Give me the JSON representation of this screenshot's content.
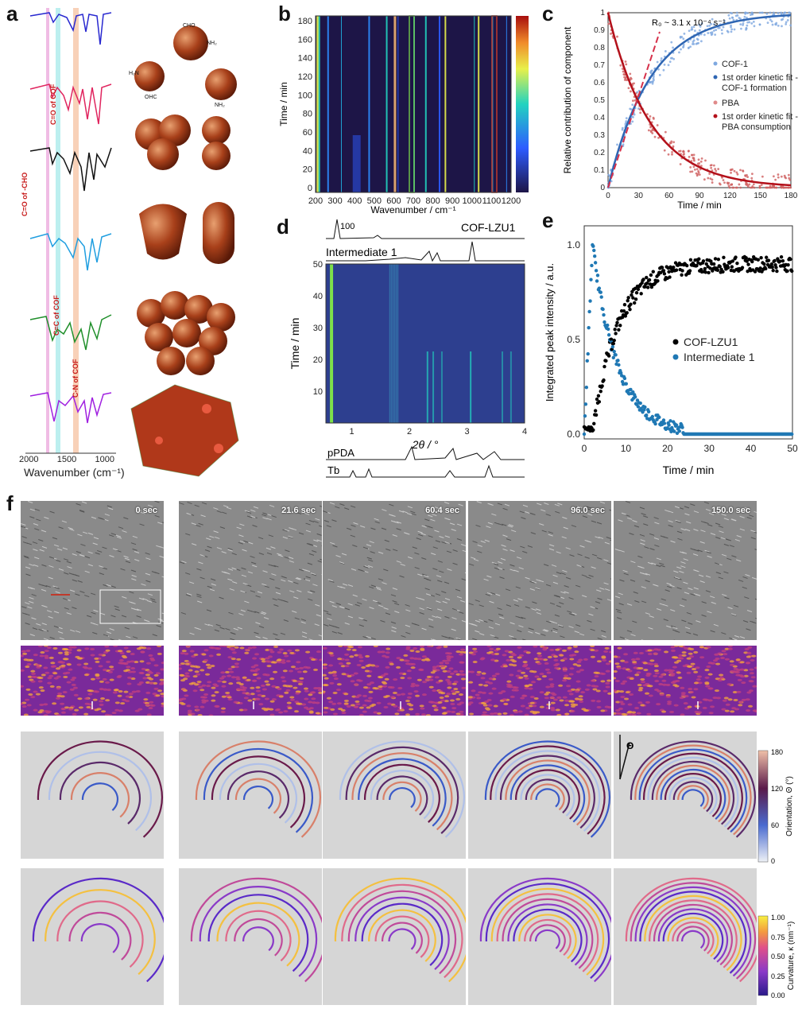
{
  "panels": {
    "a": {
      "label": "a",
      "xlabel": "Wavenumber (cm⁻¹)",
      "ticks": [
        "2000",
        "1500",
        "1000"
      ],
      "annotations": [
        "C=O of COF",
        "C=O of -CHO",
        "C=C of COF",
        "C-N of COF"
      ],
      "chem_labels": [
        "CHO",
        "NH₂",
        "H₂N",
        "OHC",
        "NH₂"
      ]
    },
    "b": {
      "label": "b",
      "ylabel": "Time / min",
      "xlabel": "Wavenumber / cm⁻¹",
      "xticks": [
        "200",
        "300",
        "400",
        "500",
        "600",
        "700",
        "800",
        "900",
        "1000",
        "1100",
        "1200"
      ],
      "yticks": [
        "0",
        "20",
        "40",
        "60",
        "80",
        "100",
        "120",
        "140",
        "160",
        "180"
      ]
    },
    "c": {
      "label": "c",
      "ylabel": "Relative contribution of component",
      "xlabel": "Time / min",
      "annotation": "R₀ ~ 3.1 x 10⁻⁴ s⁻¹",
      "legend": [
        "COF-1",
        "1st order kinetic fit -",
        "COF-1 formation",
        "PBA",
        "1st order kinetic fit -",
        "PBA consumption"
      ],
      "xticks": [
        "0",
        "30",
        "60",
        "90",
        "120",
        "150",
        "180"
      ],
      "yticks": [
        "0",
        "0.1",
        "0.2",
        "0.3",
        "0.4",
        "0.5",
        "0.6",
        "0.7",
        "0.8",
        "0.9",
        "1"
      ]
    },
    "d": {
      "label": "d",
      "top_label": "COF-LZU1",
      "peak_label": "100",
      "intermediate_label": "Intermediate 1",
      "ylabel": "Time / min",
      "xlabel": "2θ / °",
      "xticks": [
        "1",
        "2",
        "3",
        "4"
      ],
      "yticks": [
        "10",
        "20",
        "30",
        "40",
        "50"
      ],
      "bottom_labels": [
        "pPDA",
        "Tb"
      ]
    },
    "e": {
      "label": "e",
      "ylabel": "Integrated peak intensity / a.u.",
      "xlabel": "Time / min",
      "legend": [
        "COF-LZU1",
        "Intermediate 1"
      ],
      "xticks": [
        "0",
        "10",
        "20",
        "30",
        "40",
        "50"
      ],
      "yticks": [
        "0.0",
        "0.5",
        "1.0"
      ]
    },
    "f": {
      "label": "f",
      "timestamps": [
        "0 sec",
        "21.6 sec",
        "60.4 sec",
        "96.0 sec",
        "150.0 sec"
      ],
      "orientation_label": "Orientation, Θ (°)",
      "orientation_ticks": [
        "180",
        "120",
        "60",
        "0"
      ],
      "theta_symbol": "Θ",
      "curvature_label": "Curvature, κ (nm⁻¹)",
      "curvature_ticks": [
        "1.00",
        "0.75",
        "0.50",
        "0.25",
        "0.00"
      ]
    }
  },
  "colors": {
    "cof_blue": "#2f66b3",
    "pba_red": "#b3101a",
    "cof_lzu1": "#000000",
    "intermediate": "#1f78b4",
    "heat_bg": "#1d1547"
  },
  "chart_data": [
    {
      "type": "line",
      "panel": "c",
      "xlabel": "Time / min",
      "ylabel": "Relative contribution of component",
      "xlim": [
        0,
        180
      ],
      "ylim": [
        0,
        1
      ],
      "series": [
        {
          "name": "COF-1",
          "x": [
            0,
            15,
            30,
            45,
            60,
            90,
            120,
            150,
            180
          ],
          "values": [
            0,
            0.27,
            0.46,
            0.6,
            0.71,
            0.84,
            0.92,
            0.96,
            0.98
          ]
        },
        {
          "name": "PBA",
          "x": [
            0,
            15,
            30,
            45,
            60,
            90,
            120,
            150,
            180
          ],
          "values": [
            1,
            0.73,
            0.54,
            0.4,
            0.29,
            0.16,
            0.08,
            0.04,
            0.02
          ]
        }
      ]
    },
    {
      "type": "scatter",
      "panel": "e",
      "xlabel": "Time / min",
      "ylabel": "Integrated peak intensity / a.u.",
      "xlim": [
        0,
        50
      ],
      "ylim": [
        0,
        1
      ],
      "series": [
        {
          "name": "COF-LZU1",
          "x": [
            0,
            2,
            4,
            5,
            6,
            8,
            10,
            15,
            20,
            25,
            30,
            35,
            40,
            45,
            50
          ],
          "values": [
            0.02,
            0.05,
            0.25,
            0.4,
            0.52,
            0.6,
            0.65,
            0.75,
            0.81,
            0.84,
            0.86,
            0.88,
            0.89,
            0.9,
            0.88
          ]
        },
        {
          "name": "Intermediate 1",
          "x": [
            0,
            1,
            2,
            3,
            4,
            5,
            6,
            8,
            10,
            12,
            15,
            18,
            20,
            22,
            25,
            30,
            40,
            50
          ],
          "values": [
            0,
            0.5,
            1.0,
            0.85,
            0.7,
            0.55,
            0.45,
            0.36,
            0.3,
            0.22,
            0.14,
            0.07,
            0.04,
            0.01,
            0,
            0,
            0,
            0
          ]
        }
      ]
    }
  ]
}
